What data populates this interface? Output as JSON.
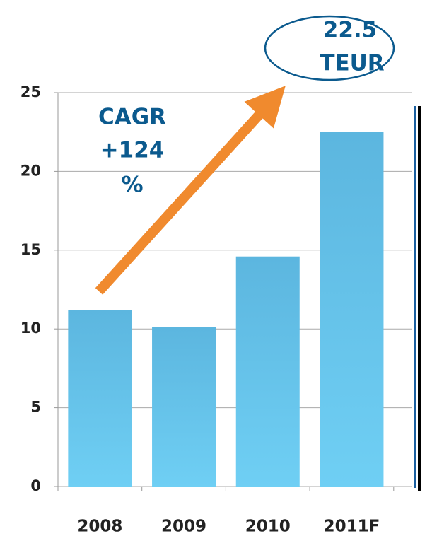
{
  "chart_data": {
    "type": "bar",
    "categories": [
      "2008",
      "2009",
      "2010",
      "2011F"
    ],
    "values": [
      11.2,
      10.1,
      14.6,
      22.5
    ],
    "color": "#62bde3",
    "ylim": [
      0,
      25
    ],
    "yticks": [
      0,
      5,
      10,
      15,
      20,
      25
    ],
    "grid": true,
    "annotations": [
      "CAGR",
      "+124",
      "%",
      "22.5",
      "TEUR"
    ]
  }
}
